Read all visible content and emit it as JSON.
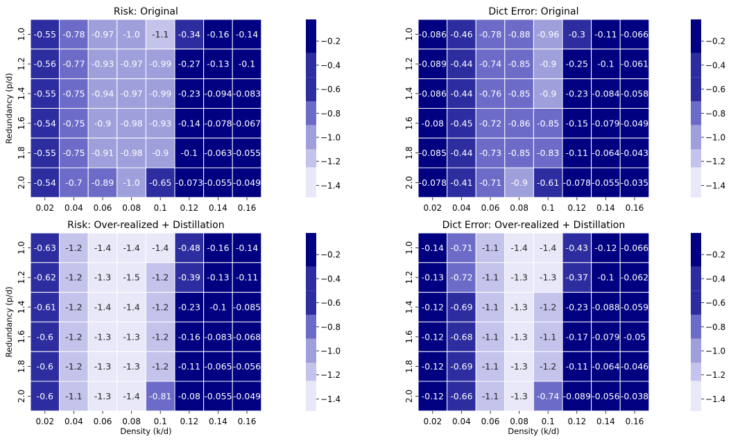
{
  "figure": {
    "background": "#ffffff"
  },
  "colorbar": {
    "bands": [
      "#e8e8f8",
      "#c3c3ec",
      "#9f9fdc",
      "#6c6cc8",
      "#2d2da0",
      "#000080"
    ],
    "ticks": [
      "-0.2",
      "-0.4",
      "-0.6",
      "-0.8",
      "-1.0",
      "-1.2",
      "-1.4"
    ]
  },
  "chart_data": [
    {
      "type": "heatmap",
      "title": "Risk: Original",
      "x_tick_labels": [
        "0.02",
        "0.04",
        "0.06",
        "0.08",
        "0.1",
        "0.12",
        "0.14",
        "0.16"
      ],
      "y_tick_labels": [
        "1.0",
        "1.2",
        "1.4",
        "1.6",
        "1.8",
        "2.0"
      ],
      "xlabel": "",
      "ylabel": "Redundancy (p/d)",
      "value_range": [
        -1.5,
        -0.02
      ],
      "values": [
        [
          -0.55,
          -0.78,
          -0.97,
          -1.0,
          -1.1,
          -0.34,
          -0.16,
          -0.14
        ],
        [
          -0.56,
          -0.77,
          -0.93,
          -0.97,
          -0.99,
          -0.27,
          -0.13,
          -0.1
        ],
        [
          -0.55,
          -0.75,
          -0.94,
          -0.97,
          -0.99,
          -0.23,
          -0.094,
          -0.083
        ],
        [
          -0.54,
          -0.75,
          -0.9,
          -0.98,
          -0.93,
          -0.14,
          -0.078,
          -0.067
        ],
        [
          -0.55,
          -0.75,
          -0.91,
          -0.98,
          -0.9,
          -0.1,
          -0.063,
          -0.055
        ],
        [
          -0.54,
          -0.7,
          -0.89,
          -1.0,
          -0.65,
          -0.073,
          -0.055,
          -0.049
        ]
      ],
      "labels": [
        [
          "-0.55",
          "-0.78",
          "-0.97",
          "-1.0",
          "-1.1",
          "-0.34",
          "-0.16",
          "-0.14"
        ],
        [
          "-0.56",
          "-0.77",
          "-0.93",
          "-0.97",
          "-0.99",
          "-0.27",
          "-0.13",
          "-0.1"
        ],
        [
          "-0.55",
          "-0.75",
          "-0.94",
          "-0.97",
          "-0.99",
          "-0.23",
          "-0.094",
          "-0.083"
        ],
        [
          "-0.54",
          "-0.75",
          "-0.9",
          "-0.98",
          "-0.93",
          "-0.14",
          "-0.078",
          "-0.067"
        ],
        [
          "-0.55",
          "-0.75",
          "-0.91",
          "-0.98",
          "-0.9",
          "-0.1",
          "-0.063",
          "-0.055"
        ],
        [
          "-0.54",
          "-0.7",
          "-0.89",
          "-1.0",
          "-0.65",
          "-0.073",
          "-0.055",
          "-0.049"
        ]
      ]
    },
    {
      "type": "heatmap",
      "title": "Dict Error: Original",
      "x_tick_labels": [
        "0.02",
        "0.04",
        "0.06",
        "0.08",
        "0.1",
        "0.12",
        "0.14",
        "0.16"
      ],
      "y_tick_labels": [
        "1.0",
        "1.2",
        "1.4",
        "1.6",
        "1.8",
        "2.0"
      ],
      "xlabel": "",
      "ylabel": "",
      "value_range": [
        -1.5,
        -0.02
      ],
      "values": [
        [
          -0.086,
          -0.46,
          -0.78,
          -0.88,
          -0.96,
          -0.3,
          -0.11,
          -0.066
        ],
        [
          -0.089,
          -0.44,
          -0.74,
          -0.85,
          -0.9,
          -0.25,
          -0.1,
          -0.061
        ],
        [
          -0.086,
          -0.44,
          -0.76,
          -0.85,
          -0.9,
          -0.23,
          -0.084,
          -0.058
        ],
        [
          -0.08,
          -0.45,
          -0.72,
          -0.86,
          -0.85,
          -0.15,
          -0.079,
          -0.049
        ],
        [
          -0.085,
          -0.44,
          -0.73,
          -0.85,
          -0.83,
          -0.11,
          -0.064,
          -0.043
        ],
        [
          -0.078,
          -0.41,
          -0.71,
          -0.9,
          -0.61,
          -0.078,
          -0.055,
          -0.035
        ]
      ],
      "labels": [
        [
          "-0.086",
          "-0.46",
          "-0.78",
          "-0.88",
          "-0.96",
          "-0.3",
          "-0.11",
          "-0.066"
        ],
        [
          "-0.089",
          "-0.44",
          "-0.74",
          "-0.85",
          "-0.9",
          "-0.25",
          "-0.1",
          "-0.061"
        ],
        [
          "-0.086",
          "-0.44",
          "-0.76",
          "-0.85",
          "-0.9",
          "-0.23",
          "-0.084",
          "-0.058"
        ],
        [
          "-0.08",
          "-0.45",
          "-0.72",
          "-0.86",
          "-0.85",
          "-0.15",
          "-0.079",
          "-0.049"
        ],
        [
          "-0.085",
          "-0.44",
          "-0.73",
          "-0.85",
          "-0.83",
          "-0.11",
          "-0.064",
          "-0.043"
        ],
        [
          "-0.078",
          "-0.41",
          "-0.71",
          "-0.9",
          "-0.61",
          "-0.078",
          "-0.055",
          "-0.035"
        ]
      ]
    },
    {
      "type": "heatmap",
      "title": "Risk: Over-realized + Distillation",
      "x_tick_labels": [
        "0.02",
        "0.04",
        "0.06",
        "0.08",
        "0.1",
        "0.12",
        "0.14",
        "0.16"
      ],
      "y_tick_labels": [
        "1.0",
        "1.2",
        "1.4",
        "1.6",
        "1.8",
        "2.0"
      ],
      "xlabel": "Density (k/d)",
      "ylabel": "Redundancy (p/d)",
      "value_range": [
        -1.5,
        -0.02
      ],
      "values": [
        [
          -0.63,
          -1.2,
          -1.4,
          -1.4,
          -1.4,
          -0.48,
          -0.16,
          -0.14
        ],
        [
          -0.62,
          -1.2,
          -1.3,
          -1.5,
          -1.2,
          -0.39,
          -0.13,
          -0.11
        ],
        [
          -0.61,
          -1.2,
          -1.4,
          -1.4,
          -1.2,
          -0.23,
          -0.1,
          -0.085
        ],
        [
          -0.6,
          -1.2,
          -1.3,
          -1.3,
          -1.2,
          -0.16,
          -0.083,
          -0.068
        ],
        [
          -0.6,
          -1.2,
          -1.3,
          -1.3,
          -1.2,
          -0.11,
          -0.065,
          -0.056
        ],
        [
          -0.6,
          -1.1,
          -1.3,
          -1.4,
          -0.81,
          -0.08,
          -0.055,
          -0.049
        ]
      ],
      "labels": [
        [
          "-0.63",
          "-1.2",
          "-1.4",
          "-1.4",
          "-1.4",
          "-0.48",
          "-0.16",
          "-0.14"
        ],
        [
          "-0.62",
          "-1.2",
          "-1.3",
          "-1.5",
          "-1.2",
          "-0.39",
          "-0.13",
          "-0.11"
        ],
        [
          "-0.61",
          "-1.2",
          "-1.4",
          "-1.4",
          "-1.2",
          "-0.23",
          "-0.1",
          "-0.085"
        ],
        [
          "-0.6",
          "-1.2",
          "-1.3",
          "-1.3",
          "-1.2",
          "-0.16",
          "-0.083",
          "-0.068"
        ],
        [
          "-0.6",
          "-1.2",
          "-1.3",
          "-1.3",
          "-1.2",
          "-0.11",
          "-0.065",
          "-0.056"
        ],
        [
          "-0.6",
          "-1.1",
          "-1.3",
          "-1.4",
          "-0.81",
          "-0.08",
          "-0.055",
          "-0.049"
        ]
      ]
    },
    {
      "type": "heatmap",
      "title": "Dict Error: Over-realized + Distillation",
      "x_tick_labels": [
        "0.02",
        "0.04",
        "0.06",
        "0.08",
        "0.1",
        "0.12",
        "0.14",
        "0.16"
      ],
      "y_tick_labels": [
        "1.0",
        "1.2",
        "1.4",
        "1.6",
        "1.8",
        "2.0"
      ],
      "xlabel": "Density (k/d)",
      "ylabel": "",
      "value_range": [
        -1.5,
        -0.02
      ],
      "values": [
        [
          -0.14,
          -0.71,
          -1.1,
          -1.4,
          -1.4,
          -0.43,
          -0.12,
          -0.066
        ],
        [
          -0.13,
          -0.72,
          -1.1,
          -1.3,
          -1.3,
          -0.37,
          -0.1,
          -0.062
        ],
        [
          -0.12,
          -0.69,
          -1.1,
          -1.3,
          -1.2,
          -0.23,
          -0.088,
          -0.059
        ],
        [
          -0.12,
          -0.68,
          -1.1,
          -1.3,
          -1.1,
          -0.17,
          -0.079,
          -0.05
        ],
        [
          -0.12,
          -0.69,
          -1.1,
          -1.3,
          -1.2,
          -0.11,
          -0.064,
          -0.046
        ],
        [
          -0.12,
          -0.66,
          -1.1,
          -1.3,
          -0.74,
          -0.089,
          -0.056,
          -0.038
        ]
      ],
      "labels": [
        [
          "-0.14",
          "-0.71",
          "-1.1",
          "-1.4",
          "-1.4",
          "-0.43",
          "-0.12",
          "-0.066"
        ],
        [
          "-0.13",
          "-0.72",
          "-1.1",
          "-1.3",
          "-1.3",
          "-0.37",
          "-0.1",
          "-0.062"
        ],
        [
          "-0.12",
          "-0.69",
          "-1.1",
          "-1.3",
          "-1.2",
          "-0.23",
          "-0.088",
          "-0.059"
        ],
        [
          "-0.12",
          "-0.68",
          "-1.1",
          "-1.3",
          "-1.1",
          "-0.17",
          "-0.079",
          "-0.05"
        ],
        [
          "-0.12",
          "-0.69",
          "-1.1",
          "-1.3",
          "-1.2",
          "-0.11",
          "-0.064",
          "-0.046"
        ],
        [
          "-0.12",
          "-0.66",
          "-1.1",
          "-1.3",
          "-0.74",
          "-0.089",
          "-0.056",
          "-0.038"
        ]
      ]
    }
  ]
}
